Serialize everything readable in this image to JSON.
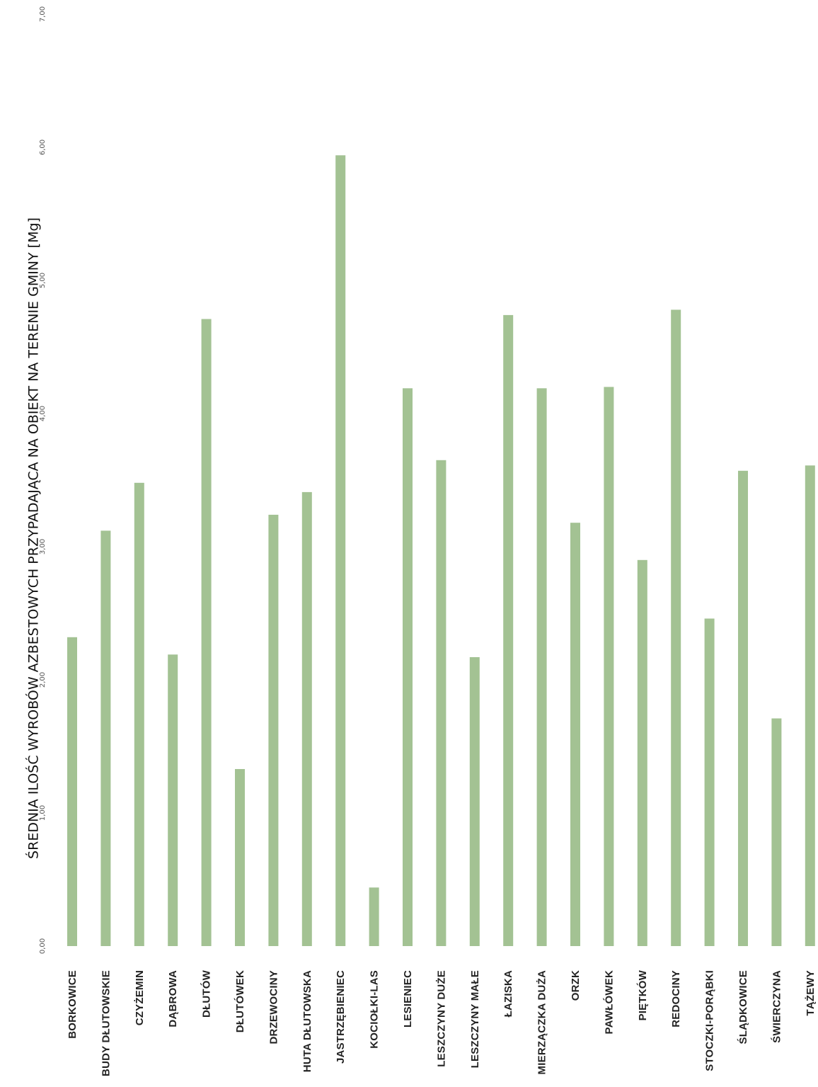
{
  "chart_data": {
    "type": "bar",
    "orientation": "vertical bars, page rotated",
    "title": "ŚREDNIA ILOŚĆ WYROBÓW AZBESTOWYCH PRZYPADAJĄCA NA OBIEKT NA TERENIE GMINY [Mg]",
    "xlabel": "",
    "ylabel": "",
    "ylim": [
      0,
      7
    ],
    "ticks": [
      "0,00",
      "1,00",
      "2,00",
      "3,00",
      "4,00",
      "5,00",
      "6,00",
      "7,00"
    ],
    "grid": false,
    "bar_color": "#a3c293",
    "categories": [
      "BORKOWICE",
      "BUDY DŁUTOWSKIE",
      "CZYŻEMIN",
      "DĄBROWA",
      "DŁUTÓW",
      "DŁUTÓWEK",
      "DRZEWOCINY",
      "HUTA DŁUTOWSKA",
      "JASTRZĘBIENIEC",
      "KOCIOŁKI-LAS",
      "LESIENIEC",
      "LESZCZYNY DUŻE",
      "LESZCZYNY MAŁE",
      "ŁAZISKA",
      "MIERZĄCZKA DUŻA",
      "ORZK",
      "PAWŁÓWEK",
      "PIĘTKÓW",
      "REDOCINY",
      "STOCZKI-PORĄBKI",
      "ŚLĄDKOWICE",
      "ŚWIERCZYNA",
      "TĄŻEWY"
    ],
    "values": [
      2.32,
      3.12,
      3.48,
      2.19,
      4.71,
      1.33,
      3.24,
      3.41,
      5.94,
      0.44,
      4.19,
      3.65,
      2.17,
      4.74,
      4.19,
      3.18,
      4.2,
      2.9,
      4.78,
      2.46,
      3.57,
      1.71,
      3.61
    ]
  }
}
